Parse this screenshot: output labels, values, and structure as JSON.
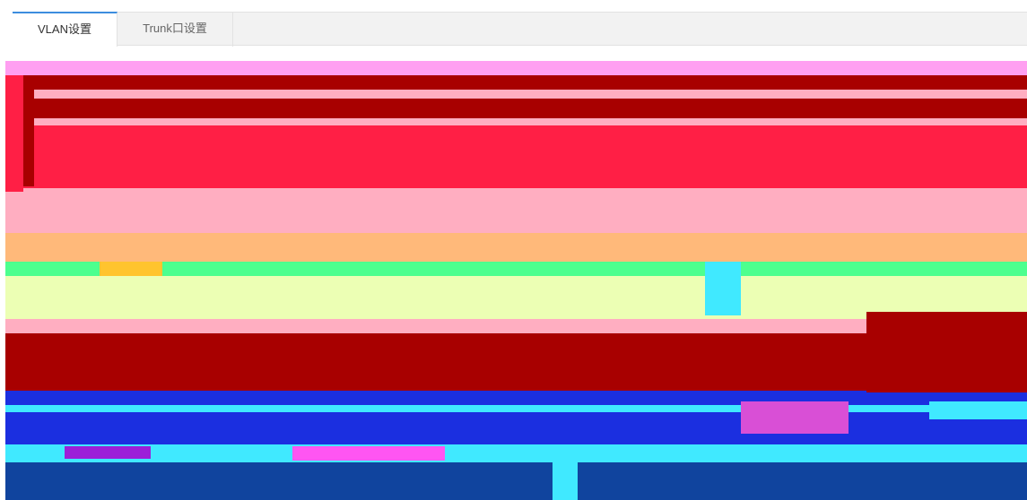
{
  "tabs": [
    {
      "label": "VLAN设置",
      "active": true
    },
    {
      "label": "Trunk口设置",
      "active": false
    }
  ],
  "colors": {
    "accent": "#3c8dde",
    "tab_bar_bg": "#f2f2f2",
    "tab_border": "#e2e2e2",
    "pink": "#ff9ff1",
    "dark_red": "#a80000",
    "red": "#ff1f45",
    "light_pink": "#ffaec1",
    "orange": "#ffb97a",
    "green": "#4cff8e",
    "light_yellow": "#ecffb4",
    "blue": "#1b2fe0",
    "cyan": "#40e9ff",
    "navy": "#10449e"
  }
}
